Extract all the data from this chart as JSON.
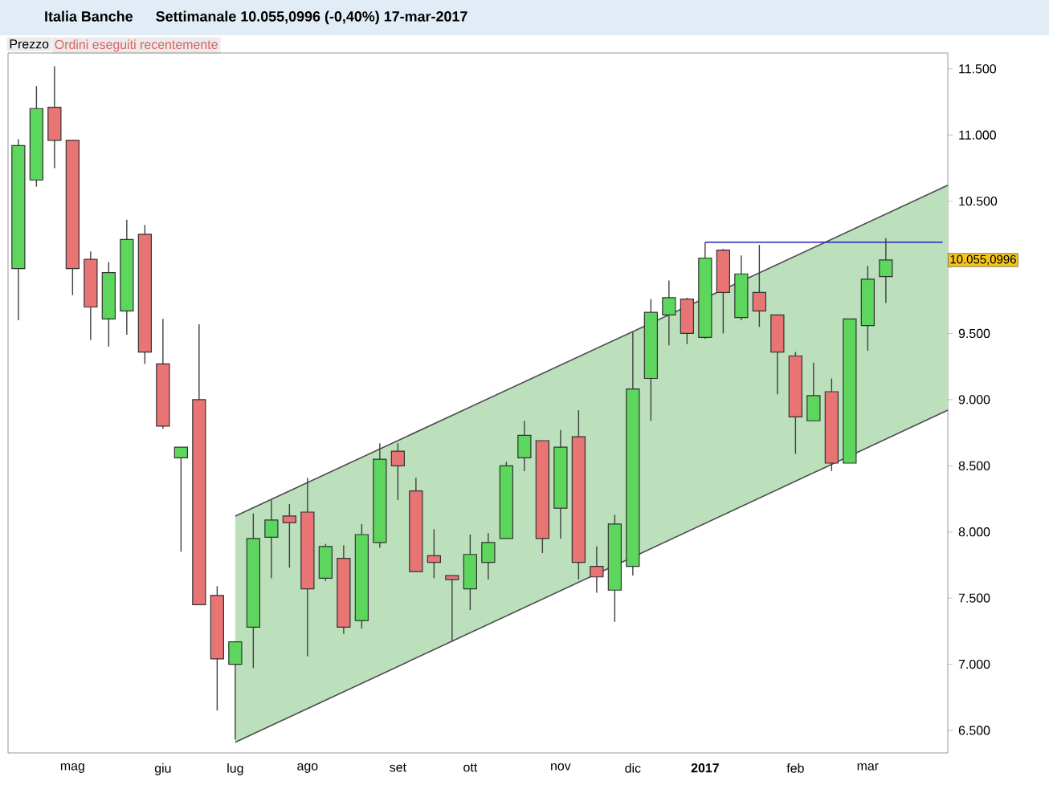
{
  "chart_data": {
    "type": "candlestick",
    "title": "Italia Banche",
    "subtitle": "Settimanale   10.055,0996 (-0,40%)   17-mar-2017",
    "annotations": [
      "Prezzo",
      "Ordini eseguiti recentemente",
      "10.055,0996"
    ],
    "x": [
      "2016-04-11",
      "2016-04-18",
      "2016-04-25",
      "2016-05-02",
      "2016-05-09",
      "2016-05-16",
      "2016-05-23",
      "2016-05-30",
      "2016-06-06",
      "2016-06-13",
      "2016-06-20",
      "2016-06-27",
      "2016-07-04",
      "2016-07-11",
      "2016-07-18",
      "2016-07-25",
      "2016-08-01",
      "2016-08-08",
      "2016-08-15",
      "2016-08-22",
      "2016-08-29",
      "2016-09-05",
      "2016-09-12",
      "2016-09-19",
      "2016-09-26",
      "2016-10-03",
      "2016-10-10",
      "2016-10-17",
      "2016-10-24",
      "2016-10-31",
      "2016-11-07",
      "2016-11-14",
      "2016-11-21",
      "2016-11-28",
      "2016-12-05",
      "2016-12-12",
      "2016-12-19",
      "2016-12-26",
      "2017-01-02",
      "2017-01-09",
      "2017-01-16",
      "2017-01-23",
      "2017-01-30",
      "2017-02-06",
      "2017-02-13",
      "2017-02-20",
      "2017-02-27",
      "2017-03-06",
      "2017-03-13"
    ],
    "ohlc": [
      [
        9990,
        10970,
        9600,
        10920
      ],
      [
        10660,
        11370,
        10610,
        11200
      ],
      [
        11210,
        11520,
        10750,
        10960
      ],
      [
        10960,
        10960,
        9790,
        9990
      ],
      [
        10060,
        10120,
        9450,
        9700
      ],
      [
        9610,
        10040,
        9400,
        9960
      ],
      [
        9670,
        10360,
        9490,
        10210
      ],
      [
        10250,
        10320,
        9270,
        9360
      ],
      [
        9270,
        9610,
        8780,
        8800
      ],
      [
        8560,
        8640,
        7850,
        8640
      ],
      [
        9000,
        9570,
        7450,
        7450
      ],
      [
        7520,
        7590,
        6650,
        7040
      ],
      [
        7000,
        7170,
        6430,
        7170
      ],
      [
        7280,
        8140,
        6970,
        7950
      ],
      [
        7960,
        8240,
        7650,
        8090
      ],
      [
        8120,
        8210,
        7730,
        8070
      ],
      [
        8150,
        8410,
        7060,
        7570
      ],
      [
        7650,
        7910,
        7630,
        7890
      ],
      [
        7800,
        7900,
        7230,
        7280
      ],
      [
        7330,
        8060,
        7270,
        7980
      ],
      [
        7920,
        8670,
        7880,
        8550
      ],
      [
        8610,
        8670,
        8240,
        8500
      ],
      [
        8310,
        8410,
        7700,
        7700
      ],
      [
        7820,
        8020,
        7650,
        7770
      ],
      [
        7670,
        7670,
        7170,
        7640
      ],
      [
        7570,
        7980,
        7410,
        7830
      ],
      [
        7770,
        7990,
        7640,
        7920
      ],
      [
        7950,
        8530,
        7950,
        8500
      ],
      [
        8560,
        8840,
        8460,
        8730
      ],
      [
        8690,
        8690,
        7840,
        7950
      ],
      [
        8180,
        8770,
        7950,
        8640
      ],
      [
        8720,
        8920,
        7640,
        7770
      ],
      [
        7740,
        7890,
        7540,
        7660
      ],
      [
        7560,
        8130,
        7320,
        8060
      ],
      [
        7740,
        9510,
        7670,
        9080
      ],
      [
        9160,
        9760,
        8840,
        9660
      ],
      [
        9640,
        9900,
        9410,
        9770
      ],
      [
        9760,
        9770,
        9420,
        9500
      ],
      [
        9470,
        10190,
        9460,
        10070
      ],
      [
        10130,
        10140,
        9500,
        9810
      ],
      [
        9620,
        10090,
        9600,
        9950
      ],
      [
        9810,
        10170,
        9550,
        9670
      ],
      [
        9640,
        9640,
        9040,
        9360
      ],
      [
        9330,
        9360,
        8590,
        8870
      ],
      [
        8840,
        9280,
        8840,
        9030
      ],
      [
        9060,
        9160,
        8460,
        8520
      ],
      [
        8520,
        9610,
        8520,
        9610
      ],
      [
        9560,
        10010,
        9370,
        9910
      ],
      [
        9930,
        10220,
        9730,
        10055
      ]
    ],
    "colors": [
      "#5cd65c",
      "#5cd65c",
      "#e87474",
      "#e87474",
      "#e87474",
      "#5cd65c",
      "#5cd65c",
      "#e87474",
      "#e87474",
      "#5cd65c",
      "#e87474",
      "#e87474",
      "#5cd65c",
      "#5cd65c",
      "#5cd65c",
      "#e87474",
      "#e87474",
      "#5cd65c",
      "#e87474",
      "#5cd65c",
      "#5cd65c",
      "#e87474",
      "#e87474",
      "#e87474",
      "#e87474",
      "#5cd65c",
      "#5cd65c",
      "#5cd65c",
      "#5cd65c",
      "#e87474",
      "#5cd65c",
      "#e87474",
      "#e87474",
      "#5cd65c",
      "#5cd65c",
      "#5cd65c",
      "#5cd65c",
      "#e87474",
      "#5cd65c",
      "#e87474",
      "#5cd65c",
      "#e87474",
      "#e87474",
      "#e87474",
      "#5cd65c",
      "#e87474",
      "#5cd65c",
      "#5cd65c",
      "#5cd65c"
    ],
    "series": [
      {
        "type": "line",
        "x": [
          "2016-07-04",
          "2017-04-06"
        ],
        "values": [
          8120,
          10620
        ],
        "lower": [
          6410,
          8920
        ],
        "upper": [
          8120,
          10620
        ],
        "color": "#4c4c4c"
      },
      {
        "type": "line",
        "x": [
          "2016-07-04",
          "2017-04-06"
        ],
        "values": [
          6410,
          8920
        ],
        "color": "#4c4c4c"
      },
      {
        "type": "line",
        "x": [
          "2017-01-02",
          "2017-04-04"
        ],
        "values": [
          10190,
          10190
        ],
        "color": "#2020c0"
      }
    ],
    "xlim": [
      "2016-04-07",
      "2017-04-06"
    ],
    "xticks": [
      {
        "value": "2016-05-02",
        "label": "mag"
      },
      {
        "value": "2016-06-06",
        "label": "giu"
      },
      {
        "value": "2016-07-04",
        "label": "lug"
      },
      {
        "value": "2016-08-01",
        "label": "ago"
      },
      {
        "value": "2016-09-05",
        "label": "set"
      },
      {
        "value": "2016-10-03",
        "label": "ott"
      },
      {
        "value": "2016-11-07",
        "label": "nov"
      },
      {
        "value": "2016-12-05",
        "label": "dic"
      },
      {
        "value": "2017-01-02",
        "label": "**2017**"
      },
      {
        "value": "2017-02-06",
        "label": "feb"
      },
      {
        "value": "2017-03-06",
        "label": "mar"
      }
    ],
    "ylim": [
      6330,
      11620
    ],
    "yticks": [
      {
        "value": 6500,
        "label": "6.500"
      },
      {
        "value": 7000,
        "label": "7.000"
      },
      {
        "value": 7500,
        "label": "7.500"
      },
      {
        "value": 8000,
        "label": "8.000"
      },
      {
        "value": 8500,
        "label": "8.500"
      },
      {
        "value": 9000,
        "label": "9.000"
      },
      {
        "value": 9500,
        "label": "9.500"
      },
      {
        "value": 10000,
        "label": null
      },
      {
        "value": 10500,
        "label": "10.500"
      },
      {
        "value": 11000,
        "label": "11.000"
      },
      {
        "value": 11500,
        "label": "11.500"
      }
    ]
  }
}
